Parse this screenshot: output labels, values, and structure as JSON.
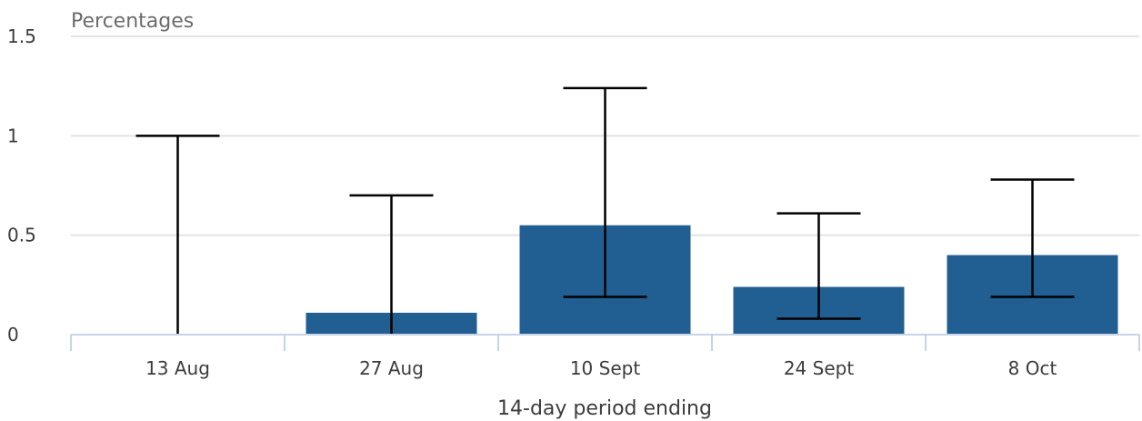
{
  "chart_data": {
    "type": "bar",
    "ylabel": "Percentages",
    "xlabel": "14-day period ending",
    "categories": [
      "13 Aug",
      "27 Aug",
      "10 Sept",
      "24 Sept",
      "8 Oct"
    ],
    "values": [
      0,
      0.11,
      0.55,
      0.24,
      0.4
    ],
    "error_lower": [
      0,
      0,
      0.19,
      0.08,
      0.19
    ],
    "error_upper": [
      1.0,
      0.7,
      1.24,
      0.61,
      0.78
    ],
    "ylim": [
      0,
      1.5
    ],
    "yticks": [
      0,
      0.5,
      1,
      1.5
    ],
    "ytick_labels": [
      "0",
      "0.5",
      "1",
      "1.5"
    ],
    "grid": true,
    "colors": {
      "bar": "#215f93",
      "errorbar": "#000000",
      "grid": "#e3e3e3",
      "axis": "#c7d3e6"
    }
  }
}
